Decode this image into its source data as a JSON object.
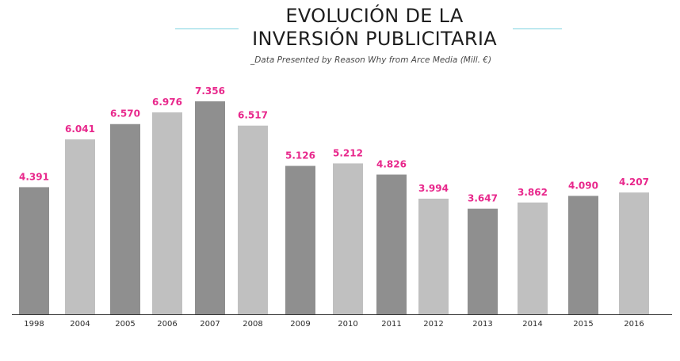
{
  "header": {
    "title_line_1": "EVOLUCIÓN DE LA",
    "title_line_2": "INVERSIÓN PUBLICITARIA",
    "subtitle": "_Data Presented by Reason Why from Arce Media (Mill. €)"
  },
  "colors": {
    "bar_dark": "#8f8f8f",
    "bar_light": "#c0c0c0",
    "value_label": "#e8288c",
    "title_rule": "#7dd3e0",
    "axis": "#333333"
  },
  "chart_data": {
    "type": "bar",
    "title": "EVOLUCIÓN DE LA INVERSIÓN PUBLICITARIA",
    "subtitle": "_Data Presented by Reason Why from Arce Media (Mill. €)",
    "xlabel": "",
    "ylabel": "",
    "ylim": [
      0,
      7356
    ],
    "grid": false,
    "categories": [
      "1998",
      "2004",
      "2005",
      "2006",
      "2007",
      "2008",
      "2009",
      "2010",
      "2011",
      "2012",
      "2013",
      "2014",
      "2015",
      "2016"
    ],
    "values": [
      4391,
      6041,
      6570,
      6976,
      7356,
      6517,
      5126,
      5212,
      4826,
      3994,
      3647,
      3862,
      4090,
      4207
    ],
    "value_labels": [
      "4.391",
      "6.041",
      "6.570",
      "6.976",
      "7.356",
      "6.517",
      "5.126",
      "5.212",
      "4.826",
      "3.994",
      "3.647",
      "3.862",
      "4.090",
      "4.207"
    ],
    "bar_shades": [
      "dark",
      "light",
      "dark",
      "light",
      "dark",
      "light",
      "dark",
      "light",
      "dark",
      "light",
      "dark",
      "light",
      "dark",
      "light"
    ]
  }
}
